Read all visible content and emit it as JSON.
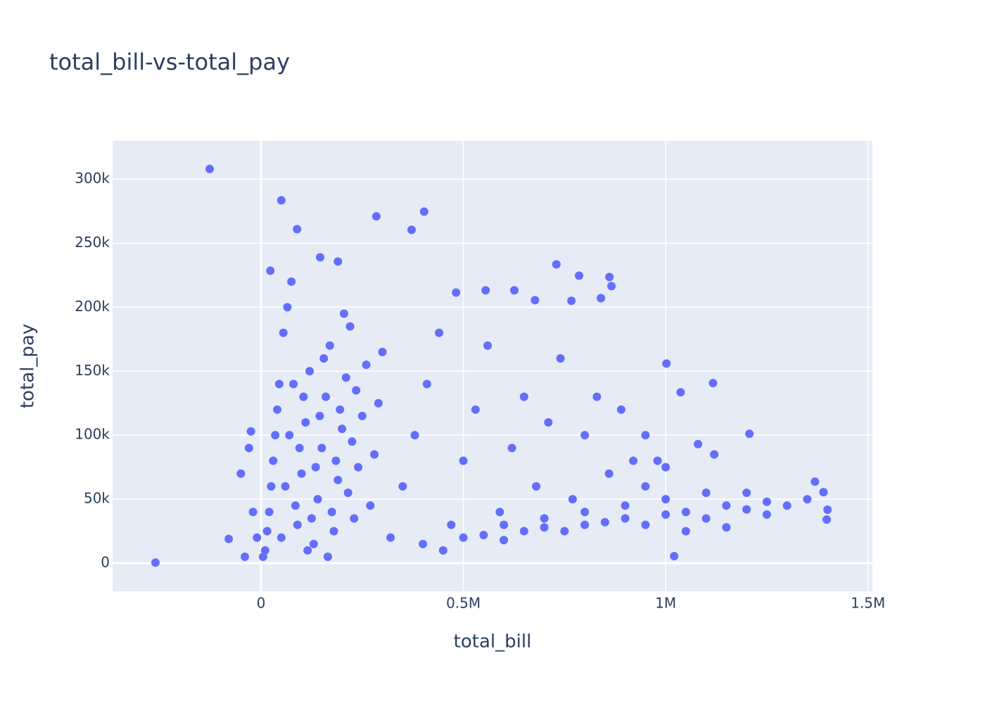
{
  "chart_data": {
    "type": "scatter",
    "title": "total_bill-vs-total_pay",
    "x_label": "total_bill",
    "y_label": "total_pay",
    "color": "#636efa",
    "grid": true,
    "xlim": [
      -367000,
      1511000
    ],
    "ylim": [
      -22000,
      330000
    ],
    "xticks": [
      0,
      {
        "value": 500000,
        "label": "0.5M"
      },
      {
        "value": 1000000,
        "label": "1M"
      },
      {
        "value": 1500000,
        "label": "1.5M"
      }
    ],
    "yticks": [
      0,
      {
        "value": 50000,
        "label": "50k"
      },
      {
        "value": 100000,
        "label": "100k"
      },
      {
        "value": 150000,
        "label": "150k"
      },
      {
        "value": 200000,
        "label": "200k"
      },
      {
        "value": 250000,
        "label": "250k"
      },
      {
        "value": 300000,
        "label": "300k"
      }
    ],
    "x": [
      -261000,
      -127000,
      50000,
      89000,
      285000,
      403000,
      372000,
      146000,
      190000,
      23000,
      730000,
      786000,
      861000,
      866000,
      482000,
      555000,
      626000,
      677000,
      767000,
      840000,
      1002000,
      1117000,
      1037000,
      1207000,
      1021000,
      1400000,
      1398000,
      1369000,
      1390000,
      10000,
      20000,
      30000,
      40000,
      50000,
      60000,
      70000,
      80000,
      90000,
      100000,
      110000,
      120000,
      130000,
      140000,
      150000,
      160000,
      170000,
      180000,
      190000,
      200000,
      210000,
      220000,
      230000,
      240000,
      250000,
      260000,
      270000,
      280000,
      290000,
      300000,
      5000,
      15000,
      25000,
      35000,
      45000,
      55000,
      65000,
      75000,
      85000,
      95000,
      105000,
      115000,
      125000,
      135000,
      145000,
      155000,
      165000,
      175000,
      185000,
      195000,
      205000,
      215000,
      225000,
      235000,
      -10000,
      -20000,
      -30000,
      -50000,
      -80000,
      -40000,
      -25000,
      320000,
      350000,
      380000,
      410000,
      440000,
      470000,
      500000,
      530000,
      560000,
      590000,
      620000,
      650000,
      680000,
      710000,
      740000,
      770000,
      800000,
      830000,
      860000,
      890000,
      920000,
      950000,
      400000,
      450000,
      500000,
      550000,
      600000,
      650000,
      700000,
      750000,
      800000,
      850000,
      900000,
      950000,
      1000000,
      1050000,
      1100000,
      1150000,
      1200000,
      1250000,
      1300000,
      1350000,
      1100000,
      1200000,
      1000000,
      900000,
      800000,
      700000,
      600000,
      1050000,
      1150000,
      1250000,
      1120000,
      1080000,
      1000000,
      950000,
      980000
    ],
    "y": [
      500,
      308000,
      283500,
      261000,
      271000,
      274700,
      260400,
      239000,
      235700,
      228500,
      233500,
      224700,
      223600,
      216500,
      211500,
      213200,
      213200,
      205500,
      205000,
      207100,
      156000,
      140700,
      133500,
      101100,
      5500,
      41800,
      34100,
      63700,
      55500,
      10000,
      40000,
      80000,
      120000,
      20000,
      60000,
      100000,
      140000,
      30000,
      70000,
      110000,
      150000,
      15000,
      50000,
      90000,
      130000,
      170000,
      25000,
      65000,
      105000,
      145000,
      185000,
      35000,
      75000,
      115000,
      155000,
      45000,
      85000,
      125000,
      165000,
      5000,
      25000,
      60000,
      100000,
      140000,
      180000,
      200000,
      220000,
      45000,
      90000,
      130000,
      10000,
      35000,
      75000,
      115000,
      160000,
      5000,
      40000,
      80000,
      120000,
      195000,
      55000,
      95000,
      135000,
      20000,
      40000,
      90000,
      70000,
      19000,
      5000,
      103000,
      20000,
      60000,
      100000,
      140000,
      180000,
      30000,
      80000,
      120000,
      170000,
      40000,
      90000,
      130000,
      60000,
      110000,
      160000,
      50000,
      100000,
      130000,
      70000,
      120000,
      80000,
      60000,
      15000,
      10000,
      20000,
      22000,
      18000,
      25000,
      28000,
      25000,
      30000,
      32000,
      35000,
      30000,
      38000,
      40000,
      35000,
      45000,
      42000,
      48000,
      45000,
      50000,
      55000,
      55000,
      50000,
      45000,
      40000,
      35000,
      30000,
      25000,
      28000,
      38000,
      85000,
      93000,
      75000,
      100000,
      80000
    ]
  }
}
